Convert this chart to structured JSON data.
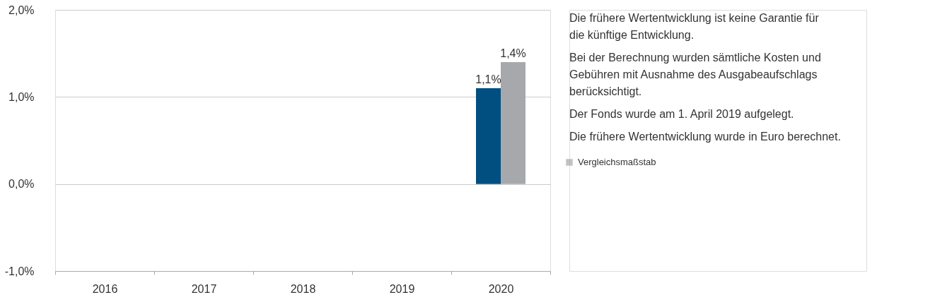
{
  "chart_data": {
    "type": "bar",
    "categories": [
      "2016",
      "2017",
      "2018",
      "2019",
      "2020"
    ],
    "series": [
      {
        "color": "#004f80",
        "values": [
          null,
          null,
          null,
          null,
          1.1
        ],
        "value_labels": [
          null,
          null,
          null,
          null,
          "1,1%"
        ]
      },
      {
        "name": "Vergleichsmaßstab",
        "color": "#a7a8ac",
        "values": [
          null,
          null,
          null,
          null,
          1.4
        ],
        "value_labels": [
          null,
          null,
          null,
          null,
          "1,4%"
        ]
      }
    ],
    "ylim": [
      -1,
      2
    ],
    "yticks": [
      {
        "value": -1,
        "label": "-1,0%"
      },
      {
        "value": 0,
        "label": "0,0%"
      },
      {
        "value": 1,
        "label": "1,0%"
      },
      {
        "value": 2,
        "label": "2,0%"
      }
    ],
    "grid": "y",
    "legend": "right",
    "annotations": [
      "Die frühere Wertentwicklung ist keine Garantie für die künftige Entwicklung.",
      "Bei der Berechnung wurden sämtliche Kosten und Gebühren mit Ausnahme des Ausgabeaufschlags berücksichtigt.",
      "Der Fonds wurde am 1. April 2019 aufgelegt.",
      "Die frühere Wertentwicklung wurde in Euro berechnet."
    ]
  }
}
